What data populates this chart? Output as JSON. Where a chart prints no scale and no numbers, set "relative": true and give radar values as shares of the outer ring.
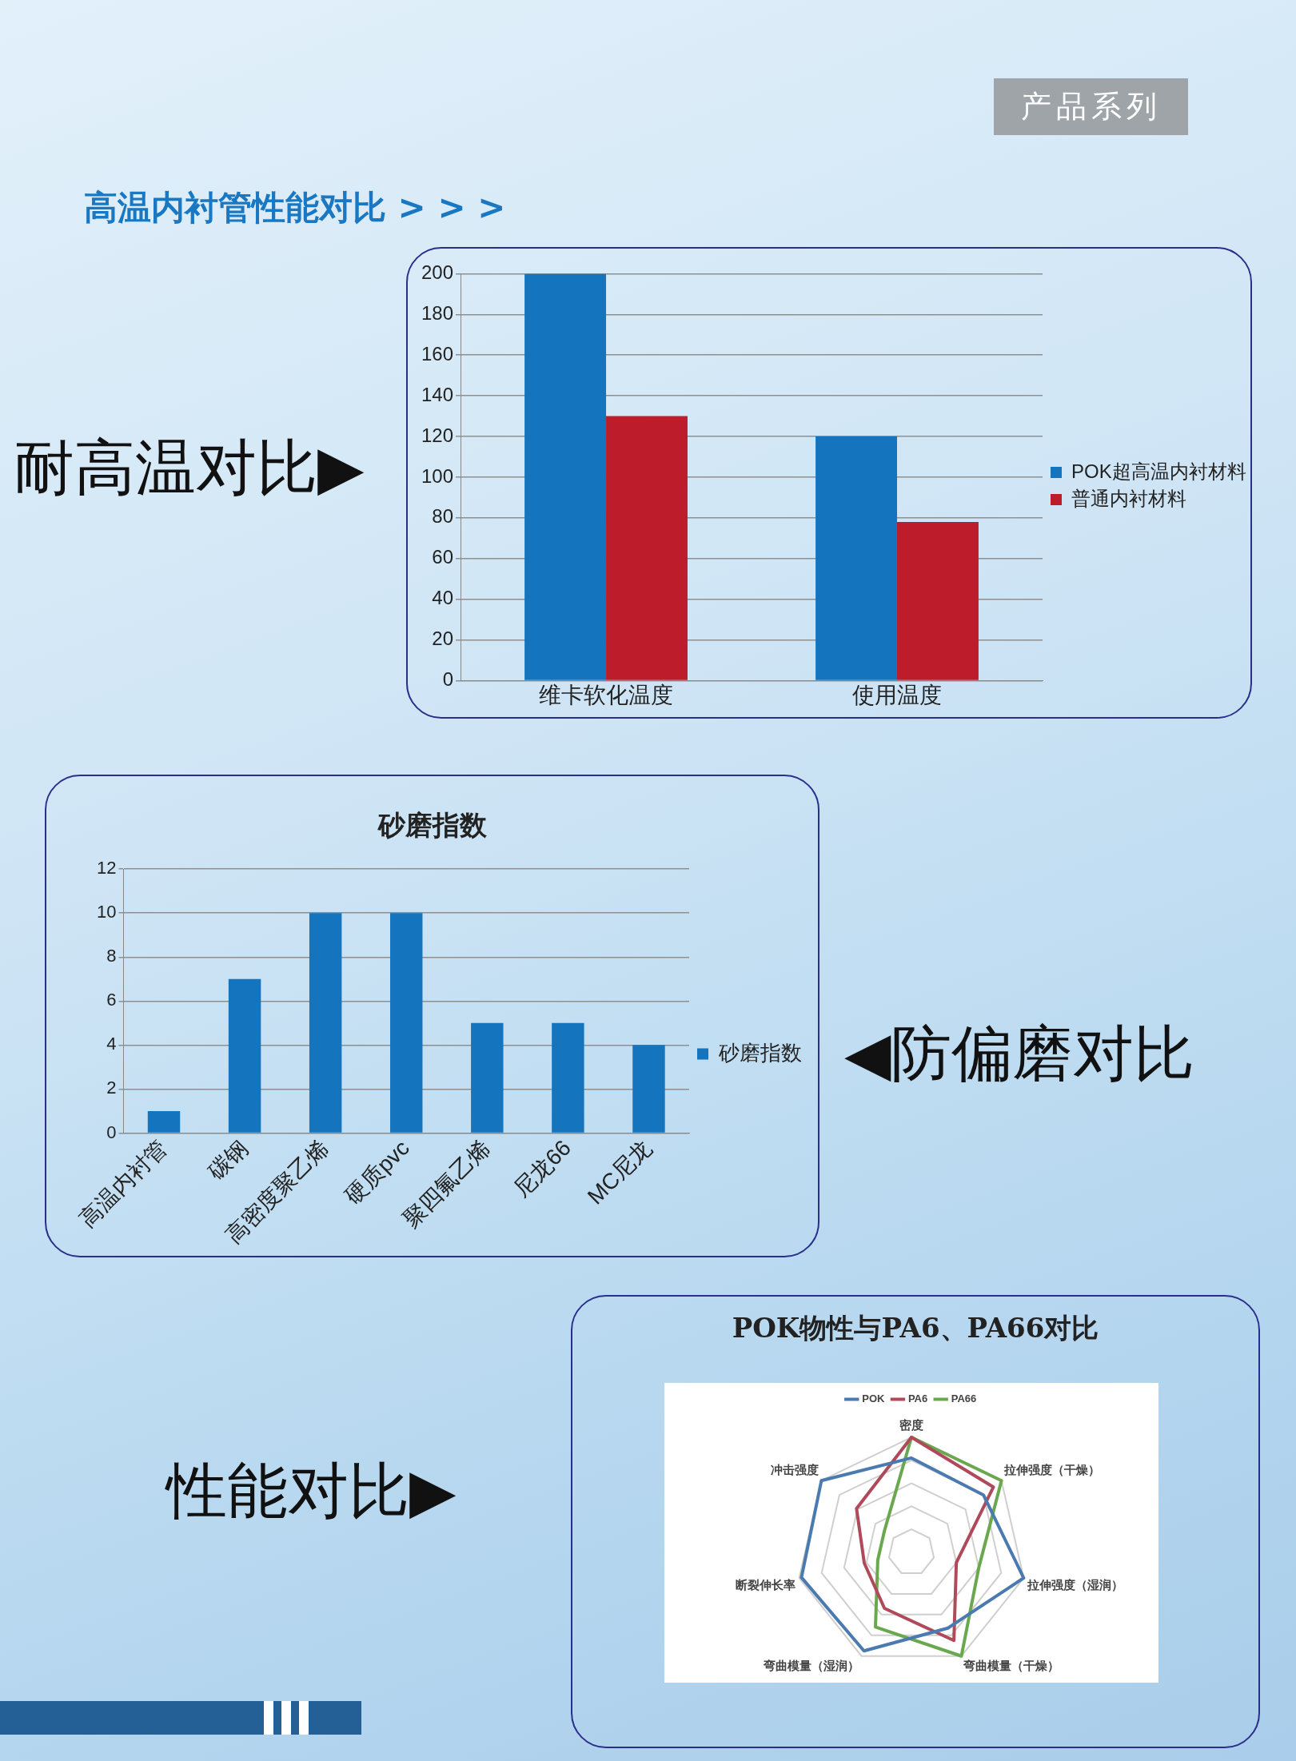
{
  "chart_data": [
    {
      "type": "bar",
      "categories": [
        "维卡软化温度",
        "使用温度"
      ],
      "series": [
        {
          "name": "POK超高温内衬材料",
          "color": "#1474be",
          "values": [
            200,
            120
          ]
        },
        {
          "name": "普通内衬材料",
          "color": "#bd1c2b",
          "values": [
            130,
            78
          ]
        }
      ],
      "ylim": [
        0,
        200
      ],
      "yticks": [
        0,
        20,
        40,
        60,
        80,
        100,
        120,
        140,
        160,
        180,
        200
      ],
      "grid": "y",
      "legend": "right",
      "annotations": [
        "产品系列",
        "高温内衬管性能对比 > > >",
        "耐高温对比▶"
      ]
    },
    {
      "type": "bar",
      "title": "砂磨指数",
      "categories": [
        "高温内衬管",
        "碳钢",
        "高密度聚乙烯",
        "硬质pvc",
        "聚四氟乙烯",
        "尼龙66",
        "MC尼龙"
      ],
      "series": [
        {
          "name": "砂磨指数",
          "color": "#1474be",
          "values": [
            1,
            7,
            10,
            10,
            5,
            5,
            4
          ]
        }
      ],
      "ylim": [
        0,
        12
      ],
      "yticks": [
        0,
        2,
        4,
        6,
        8,
        10,
        12
      ],
      "grid": "y",
      "legend": "right",
      "annotations": [
        "◀防偏磨对比"
      ]
    },
    {
      "type": "radar",
      "title": "POK物性与PA6、PA66对比",
      "relative": true,
      "categories": [
        "密度",
        "拉伸强度（干燥）",
        "拉伸强度（湿润）",
        "弯曲模量（干燥）",
        "弯曲模量（湿润）",
        "断裂伸长率",
        "冲击强度"
      ],
      "series": [
        {
          "name": "POK",
          "color": "#4a7ab0",
          "values": [
            0.82,
            0.8,
            1,
            0.73,
            0.95,
            0.98,
            1
          ]
        },
        {
          "name": "PA6",
          "color": "#b04a5a",
          "values": [
            1,
            0.91,
            0.4,
            0.85,
            0.54,
            0.42,
            0.61
          ]
        },
        {
          "name": "PA66",
          "color": "#6aa84f",
          "values": [
            1,
            1,
            0.6,
            1,
            0.72,
            0.3,
            0.3
          ]
        }
      ],
      "grid": true,
      "legend": "top",
      "marker": "none",
      "annotations": [
        "性能对比▶"
      ]
    }
  ]
}
